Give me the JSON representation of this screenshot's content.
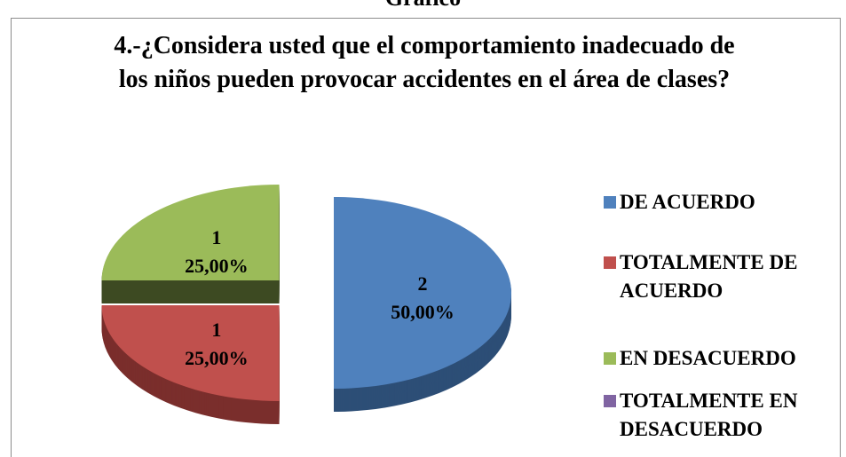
{
  "header": "Gráfico",
  "chart_data": {
    "type": "pie3d",
    "title": "4.-¿Considera usted que el comportamiento inadecuado de los niños pueden provocar accidentes en el área de clases?",
    "categories": [
      "DE ACUERDO",
      "TOTALMENTE DE ACUERDO",
      "EN DESACUERDO",
      "TOTALMENTE EN DESACUERDO"
    ],
    "values": [
      2,
      1,
      1,
      0
    ],
    "percentages": [
      50,
      25,
      25,
      0
    ],
    "percent_labels": [
      "50,00%",
      "25,00%",
      "25,00%",
      null
    ],
    "colors": [
      "#4f81bd",
      "#c0504d",
      "#9bbb59",
      "#8064a2"
    ],
    "side_colors": [
      "#2d4e76",
      "#7a2e2c",
      "#3d4a22",
      "#4d3b63"
    ],
    "legend": "right"
  }
}
